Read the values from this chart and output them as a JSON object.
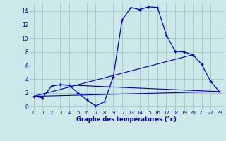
{
  "background_color": "#cce8e8",
  "grid_color": "#aacccc",
  "line_color": "#0000bb",
  "title": "Graphe des températures (°c)",
  "xlim": [
    -0.5,
    21.5
  ],
  "ylim": [
    -0.5,
    15.2
  ],
  "yticks": [
    0,
    2,
    4,
    6,
    8,
    10,
    12,
    14
  ],
  "xtick_positions": [
    0,
    1,
    2,
    3,
    4,
    5,
    6,
    7,
    8,
    9,
    10,
    11,
    12,
    13,
    14,
    15,
    16,
    17,
    18,
    19,
    20,
    21
  ],
  "xtick_labels": [
    "0",
    "1",
    "2",
    "3",
    "4",
    "5",
    "6",
    "7",
    "8",
    "9",
    "12",
    "13",
    "14",
    "15",
    "16",
    "17",
    "18",
    "19",
    "20",
    "21",
    "22",
    "23"
  ],
  "series1_x": [
    0,
    1,
    2,
    3,
    4,
    5,
    6,
    7,
    8,
    9,
    10,
    11,
    12,
    13,
    14,
    15,
    16,
    17,
    18,
    19,
    20,
    21
  ],
  "series1_y": [
    1.5,
    1.3,
    3.0,
    3.2,
    3.1,
    2.0,
    1.0,
    0.1,
    0.7,
    4.4,
    12.7,
    14.5,
    14.2,
    14.6,
    14.5,
    10.5,
    8.1,
    8.0,
    7.6,
    6.2,
    3.7,
    2.2
  ],
  "series2_x": [
    0,
    21
  ],
  "series2_y": [
    1.5,
    2.2
  ],
  "series3_x": [
    0,
    18
  ],
  "series3_y": [
    1.5,
    7.6
  ],
  "series4_x": [
    3,
    21
  ],
  "series4_y": [
    3.2,
    2.2
  ]
}
